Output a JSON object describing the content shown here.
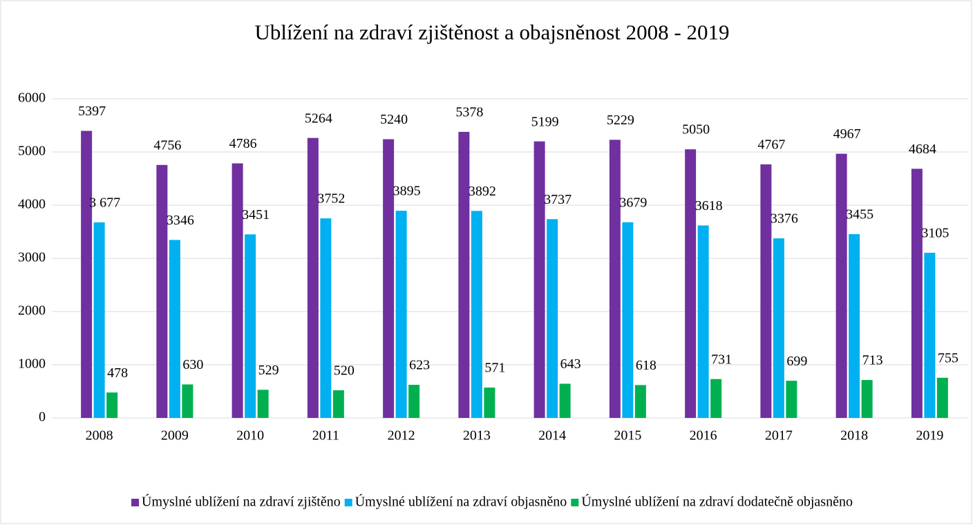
{
  "chart_data": {
    "type": "bar",
    "title": "Ublížení na zdraví zjištěnost a obajsněnost 2008 - 2019",
    "categories": [
      "2008",
      "2009",
      "2010",
      "2011",
      "2012",
      "2013",
      "2014",
      "2015",
      "2016",
      "2017",
      "2018",
      "2019"
    ],
    "series": [
      {
        "name": "Úmyslné ublížení na zdraví zjištěno",
        "color": "#7030a0",
        "values": [
          5397,
          4756,
          4786,
          5264,
          5240,
          5378,
          5199,
          5229,
          5050,
          4767,
          4967,
          4684
        ]
      },
      {
        "name": "Úmyslné ublížení na zdraví objasněno",
        "color": "#00b0f0",
        "values": [
          3677,
          3346,
          3451,
          3752,
          3895,
          3892,
          3737,
          3679,
          3618,
          3376,
          3455,
          3105
        ],
        "value_labels": [
          "3 677",
          "3346",
          "3451",
          "3752",
          "3895",
          "3892",
          "3737",
          "3679",
          "3618",
          "3376",
          "3455",
          "3105"
        ]
      },
      {
        "name": "Úmyslné ublížení na zdraví dodatečně objasněno",
        "color": "#00b050",
        "values": [
          478,
          630,
          529,
          520,
          623,
          571,
          643,
          618,
          731,
          699,
          713,
          755
        ]
      }
    ],
    "ylim": [
      0,
      6000
    ],
    "yticks": [
      0,
      1000,
      2000,
      3000,
      4000,
      5000,
      6000
    ],
    "grid": true,
    "legend": "bottom"
  }
}
